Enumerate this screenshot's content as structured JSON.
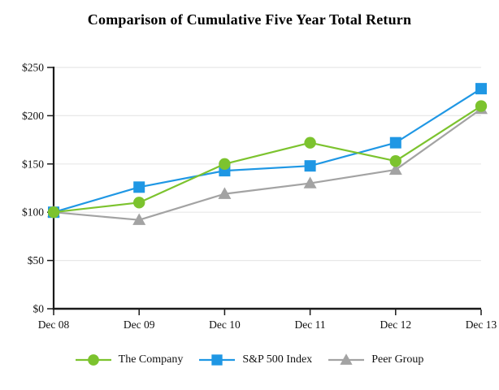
{
  "chart_data": {
    "type": "line",
    "title": "Comparison of Cumulative Five Year Total Return",
    "x": [
      "Dec 08",
      "Dec 09",
      "Dec 10",
      "Dec 11",
      "Dec 12",
      "Dec 13"
    ],
    "y_ticks": [
      "$0",
      "$50",
      "$100",
      "$150",
      "$200",
      "$250"
    ],
    "ylim": [
      0,
      250
    ],
    "grid": true,
    "legend_position": "bottom",
    "series": [
      {
        "name": "The Company",
        "marker": "circle",
        "color": "#7cc32e",
        "values": [
          100,
          110,
          150,
          172,
          153,
          210
        ]
      },
      {
        "name": "S&P 500 Index",
        "marker": "square",
        "color": "#1f97e4",
        "values": [
          100,
          126,
          143,
          148,
          172,
          228
        ]
      },
      {
        "name": "Peer Group",
        "marker": "triangle",
        "color": "#a3a3a3",
        "values": [
          100,
          92,
          119,
          130,
          144,
          207
        ]
      }
    ],
    "colors": {
      "grid": "#e8e8e8",
      "axis": "#1a1a1a",
      "tick_label": "#111111"
    }
  }
}
